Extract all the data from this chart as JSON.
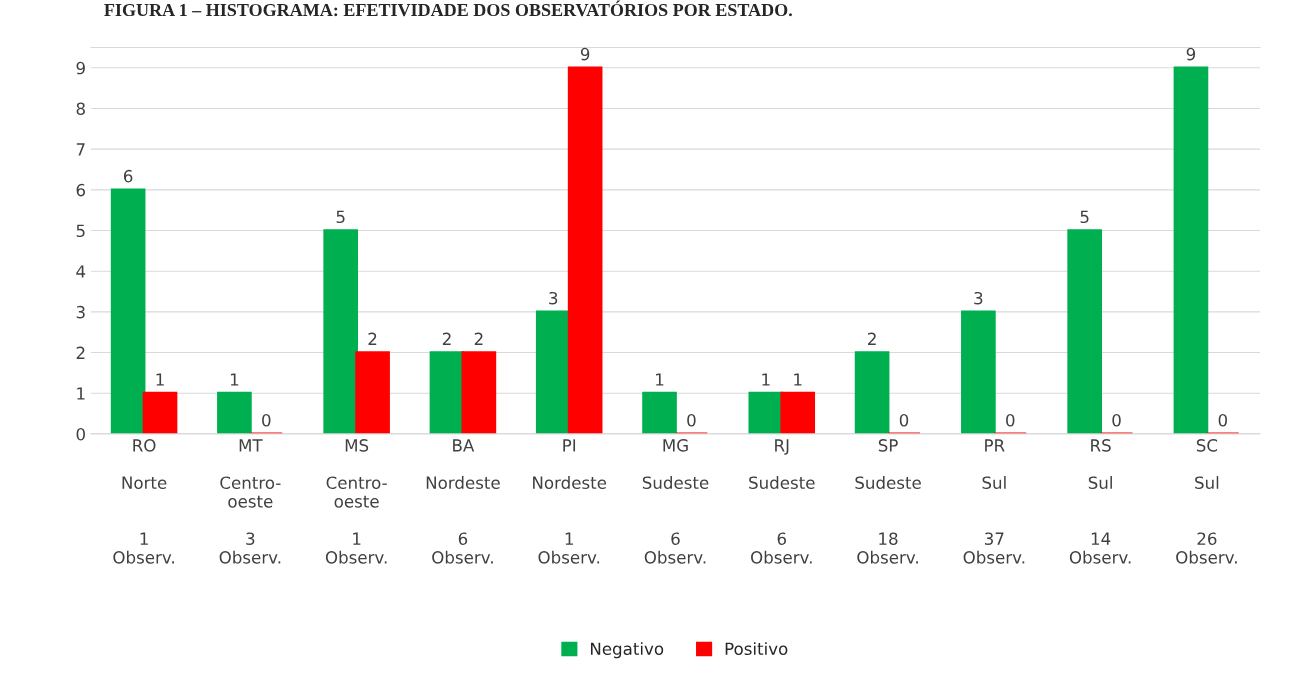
{
  "chart_data": {
    "type": "bar",
    "title": "FIGURA 1 – HISTOGRAMA: EFETIVIDADE DOS OBSERVATÓRIOS POR ESTADO.",
    "categories": [
      "RO\n\nNorte\n\n\n1\nObserv.",
      "MT\n\nCentro-\noeste\n\n3\nObserv.",
      "MS\n\nCentro-\noeste\n\n1\nObserv.",
      "BA\n\nNordeste\n\n\n6\nObserv.",
      "PI\n\nNordeste\n\n\n1\nObserv.",
      "MG\n\nSudeste\n\n\n6\nObserv.",
      "RJ\n\nSudeste\n\n\n6\nObserv.",
      "SP\n\nSudeste\n\n\n18\nObserv.",
      "PR\n\nSul\n\n\n37\nObserv.",
      "RS\n\nSul\n\n\n14\nObserv.",
      "SC\n\nSul\n\n\n26\nObserv."
    ],
    "series": [
      {
        "name": "Negativo",
        "color": "#00b050",
        "values": [
          6,
          1,
          5,
          2,
          3,
          1,
          1,
          2,
          3,
          5,
          9
        ]
      },
      {
        "name": "Positivo",
        "color": "#ff0000",
        "values": [
          1,
          0,
          2,
          2,
          9,
          0,
          1,
          0,
          0,
          0,
          0
        ]
      }
    ],
    "ylim": [
      0,
      9.5
    ],
    "yticks": [
      0,
      1,
      2,
      3,
      4,
      5,
      6,
      7,
      8,
      9
    ],
    "grid": "y",
    "legend": "bottom",
    "data_labels": true
  }
}
